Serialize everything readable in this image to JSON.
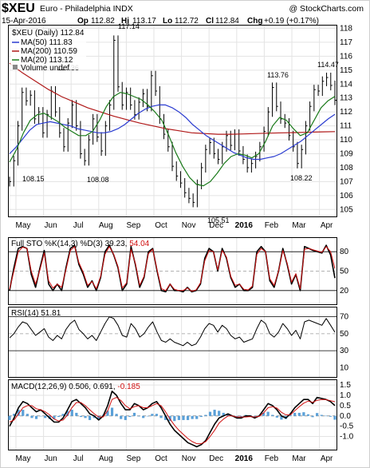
{
  "header": {
    "symbol": "$XEU",
    "name": "Euro - Philadelphia INDX",
    "brand": "@ StockCharts.com",
    "date": "15-Apr-2016",
    "op_label": "Op",
    "op": "112.82",
    "hi_label": "Hi",
    "hi": "113.17",
    "lo_label": "Lo",
    "lo": "112.72",
    "cl_label": "Cl",
    "cl": "112.84",
    "chg_label": "Chg",
    "chg": "+0.19 (+0.17%)"
  },
  "legend": {
    "price": "$XEU (Daily) 112.84",
    "ma50": "MA(50) 111.83",
    "ma200": "MA(200) 110.59",
    "ma20": "MA(20) 113.12",
    "volume": "Volume undef"
  },
  "colors": {
    "ma50": "#2a3bd0",
    "ma200": "#b01818",
    "ma20": "#1a7a1a",
    "price": "#000000",
    "signal": "#d01010",
    "hist": "#5aa0d8"
  },
  "chart_data": [
    {
      "type": "line",
      "title": "$XEU Euro - Philadelphia INDX",
      "xlabel": "",
      "ylabel": "",
      "ylim": [
        104.5,
        118.2
      ],
      "yticks": [
        105,
        106,
        107,
        108,
        109,
        110,
        111,
        112,
        113,
        114,
        115,
        116,
        117,
        118
      ],
      "xticks": [
        "May",
        "Jun",
        "Jul",
        "Aug",
        "Sep",
        "Oct",
        "Nov",
        "Dec",
        "2016",
        "Feb",
        "Mar",
        "Apr"
      ],
      "grid": true,
      "annotations": [
        {
          "label": "117.14",
          "value": 117.14
        },
        {
          "label": "114.36",
          "value": 114.36
        },
        {
          "label": "113.76",
          "value": 113.76
        },
        {
          "label": "114.47",
          "value": 114.47
        },
        {
          "label": "108.15",
          "value": 108.15
        },
        {
          "label": "108.08",
          "value": 108.08
        },
        {
          "label": "108.22",
          "value": 108.22
        },
        {
          "label": "105.51",
          "value": 105.51
        }
      ],
      "series": [
        {
          "name": "$XEU (Daily) 112.84",
          "values": [
            107.0,
            108.5,
            111.0,
            113.4,
            112.8,
            113.2,
            111.5,
            112.0,
            110.5,
            111.8,
            113.5,
            112.0,
            110.5,
            109.5,
            111.2,
            112.5,
            111.0,
            109.0,
            108.5,
            110.0,
            111.5,
            110.2,
            109.2,
            111.0,
            112.5,
            117.14,
            113.8,
            112.5,
            113.4,
            112.5,
            111.8,
            112.7,
            113.3,
            112.4,
            114.6,
            113.5,
            111.5,
            110.4,
            109.5,
            108.1,
            107.4,
            106.9,
            106.2,
            105.8,
            105.51,
            106.8,
            108.0,
            109.3,
            109.8,
            109.0,
            108.6,
            109.5,
            110.3,
            109.6,
            110.4,
            109.2,
            108.6,
            108.0,
            108.3,
            108.8,
            109.5,
            110.6,
            112.0,
            113.76,
            112.4,
            111.5,
            111.2,
            110.3,
            109.5,
            108.3,
            109.3,
            111.0,
            112.4,
            113.6,
            113.5,
            114.2,
            114.47,
            113.9,
            112.84
          ]
        },
        {
          "name": "MA(50) 111.83",
          "values": [
            109.0,
            109.5,
            110.1,
            110.7,
            111.1,
            111.2,
            111.3,
            111.2,
            111.1,
            111.0,
            110.8,
            110.7,
            110.6,
            110.5,
            110.5,
            110.6,
            110.8,
            111.1,
            111.5,
            111.9,
            112.2,
            112.4,
            112.5,
            112.5,
            112.3,
            112.0,
            111.6,
            111.1,
            110.7,
            110.3,
            110.0,
            109.7,
            109.4,
            109.1,
            108.9,
            108.7,
            108.6,
            108.6,
            108.7,
            108.8,
            109.0,
            109.3,
            109.6,
            109.9,
            110.3,
            110.7,
            111.1,
            111.5,
            111.83
          ]
        },
        {
          "name": "MA(200) 110.59",
          "values": [
            115.5,
            114.8,
            114.2,
            113.6,
            113.1,
            112.7,
            112.3,
            112.0,
            111.7,
            111.45,
            111.2,
            111.0,
            110.8,
            110.65,
            110.5,
            110.45,
            110.4,
            110.4,
            110.42,
            110.45,
            110.48,
            110.5,
            110.52,
            110.55,
            110.57,
            110.59
          ]
        },
        {
          "name": "MA(20) 113.12",
          "values": [
            108.4,
            109.3,
            110.5,
            111.4,
            111.8,
            111.9,
            111.6,
            111.3,
            110.9,
            110.6,
            110.3,
            110.3,
            110.6,
            111.4,
            112.4,
            113.1,
            113.4,
            113.3,
            113.1,
            112.9,
            112.5,
            112.0,
            111.4,
            110.3,
            109.1,
            108.1,
            107.3,
            106.8,
            106.7,
            107.0,
            107.6,
            108.3,
            108.8,
            109.0,
            108.9,
            108.7,
            109.0,
            109.9,
            111.0,
            111.6,
            111.4,
            110.8,
            110.3,
            110.5,
            111.4,
            112.3,
            112.8,
            113.12
          ]
        }
      ]
    },
    {
      "type": "line",
      "title": "Full STO %K(14,3) %D(3) 39.23, 54.04",
      "ylim": [
        0,
        100
      ],
      "yticks": [
        20,
        50,
        80
      ],
      "series": [
        {
          "name": "%K(14,3)",
          "values": [
            20,
            55,
            85,
            88,
            85,
            45,
            25,
            55,
            82,
            30,
            20,
            30,
            20,
            55,
            85,
            90,
            60,
            45,
            25,
            35,
            20,
            40,
            80,
            90,
            75,
            55,
            20,
            30,
            88,
            60,
            25,
            40,
            80,
            85,
            50,
            20,
            18,
            30,
            20,
            20,
            18,
            25,
            18,
            20,
            30,
            70,
            85,
            80,
            50,
            85,
            70,
            40,
            25,
            30,
            20,
            20,
            25,
            80,
            88,
            80,
            35,
            25,
            50,
            85,
            60,
            30,
            45,
            20,
            88,
            85,
            82,
            80,
            78,
            90,
            75,
            39.23
          ]
        },
        {
          "name": "%D(3)",
          "values": [
            22,
            50,
            80,
            87,
            85,
            50,
            30,
            52,
            78,
            35,
            24,
            30,
            25,
            52,
            82,
            88,
            63,
            48,
            28,
            34,
            23,
            42,
            76,
            88,
            76,
            57,
            24,
            32,
            84,
            62,
            28,
            42,
            77,
            84,
            52,
            23,
            20,
            30,
            22,
            20,
            20,
            24,
            19,
            21,
            32,
            66,
            82,
            80,
            52,
            82,
            72,
            42,
            28,
            30,
            22,
            21,
            27,
            76,
            85,
            80,
            38,
            28,
            50,
            82,
            62,
            33,
            46,
            23,
            84,
            85,
            83,
            81,
            79,
            88,
            80,
            54.04
          ]
        }
      ]
    },
    {
      "type": "line",
      "title": "RSI(14) 51.81",
      "ylim": [
        0,
        80
      ],
      "yticks": [
        10,
        30,
        50,
        70
      ],
      "series": [
        {
          "name": "RSI(14)",
          "values": [
            45,
            50,
            58,
            64,
            62,
            55,
            48,
            52,
            56,
            46,
            42,
            48,
            44,
            55,
            62,
            66,
            55,
            50,
            44,
            48,
            42,
            52,
            62,
            70,
            68,
            60,
            48,
            46,
            62,
            56,
            46,
            50,
            58,
            64,
            52,
            42,
            40,
            44,
            40,
            38,
            36,
            40,
            36,
            38,
            46,
            56,
            62,
            60,
            52,
            60,
            56,
            48,
            44,
            46,
            40,
            42,
            44,
            56,
            66,
            62,
            50,
            46,
            52,
            62,
            56,
            48,
            54,
            44,
            64,
            66,
            64,
            62,
            60,
            68,
            60,
            51.81
          ]
        }
      ]
    },
    {
      "type": "line",
      "title": "MACD(12,26,9) 0.506, 0.691, -0.185",
      "ylim": [
        -1.6,
        1.7
      ],
      "yticks": [
        -1.0,
        -0.5,
        0.0,
        0.5,
        1.0,
        1.5
      ],
      "series": [
        {
          "name": "MACD",
          "values": [
            -0.5,
            -0.1,
            0.4,
            0.7,
            0.6,
            0.4,
            0.2,
            0.3,
            0.1,
            -0.1,
            -0.3,
            -0.3,
            -0.1,
            0.3,
            0.7,
            0.8,
            0.6,
            0.4,
            0.1,
            0.0,
            -0.2,
            0.0,
            0.5,
            1.2,
            1.0,
            0.6,
            0.3,
            0.3,
            0.6,
            0.5,
            0.3,
            0.4,
            0.6,
            0.7,
            0.4,
            0.0,
            -0.4,
            -0.7,
            -0.9,
            -1.1,
            -1.3,
            -1.4,
            -1.5,
            -1.4,
            -1.2,
            -0.8,
            -0.4,
            -0.1,
            0.0,
            0.1,
            0.0,
            -0.1,
            -0.1,
            0.0,
            0.0,
            -0.1,
            0.0,
            0.3,
            0.6,
            0.5,
            0.3,
            0.0,
            -0.1,
            0.1,
            0.4,
            0.6,
            0.8,
            0.8,
            0.6,
            0.9,
            0.85,
            0.8,
            0.7,
            0.506
          ]
        },
        {
          "name": "Signal",
          "values": [
            -0.3,
            -0.2,
            0.1,
            0.4,
            0.5,
            0.5,
            0.35,
            0.3,
            0.2,
            0.05,
            -0.15,
            -0.25,
            -0.2,
            0.05,
            0.4,
            0.65,
            0.65,
            0.5,
            0.3,
            0.1,
            -0.05,
            -0.05,
            0.25,
            0.8,
            0.9,
            0.75,
            0.5,
            0.35,
            0.45,
            0.5,
            0.4,
            0.4,
            0.5,
            0.6,
            0.5,
            0.2,
            -0.15,
            -0.45,
            -0.7,
            -0.9,
            -1.1,
            -1.25,
            -1.35,
            -1.35,
            -1.25,
            -1.0,
            -0.7,
            -0.35,
            -0.15,
            0.0,
            0.0,
            -0.05,
            -0.05,
            -0.05,
            -0.03,
            -0.05,
            -0.02,
            0.15,
            0.4,
            0.45,
            0.38,
            0.18,
            0.05,
            0.05,
            0.25,
            0.45,
            0.62,
            0.72,
            0.66,
            0.76,
            0.8,
            0.79,
            0.74,
            0.691
          ]
        },
        {
          "name": "Histogram",
          "values": [
            -0.2,
            0.1,
            0.3,
            0.3,
            0.1,
            -0.1,
            -0.15,
            0.0,
            -0.1,
            -0.15,
            -0.15,
            -0.05,
            0.1,
            0.25,
            0.3,
            0.15,
            -0.05,
            -0.1,
            -0.2,
            -0.1,
            -0.15,
            0.05,
            0.25,
            0.4,
            0.1,
            -0.15,
            -0.2,
            -0.05,
            0.15,
            0.0,
            -0.1,
            0.0,
            0.1,
            0.1,
            -0.1,
            -0.2,
            -0.25,
            -0.25,
            -0.2,
            -0.2,
            -0.2,
            -0.15,
            -0.15,
            -0.05,
            0.05,
            0.2,
            0.3,
            0.25,
            0.15,
            0.1,
            0.0,
            -0.05,
            -0.05,
            0.05,
            0.03,
            -0.05,
            0.02,
            0.15,
            0.2,
            0.05,
            -0.08,
            -0.18,
            -0.15,
            0.05,
            0.15,
            0.15,
            0.18,
            0.08,
            -0.06,
            0.14,
            0.05,
            0.01,
            -0.04,
            -0.185
          ]
        }
      ]
    }
  ]
}
